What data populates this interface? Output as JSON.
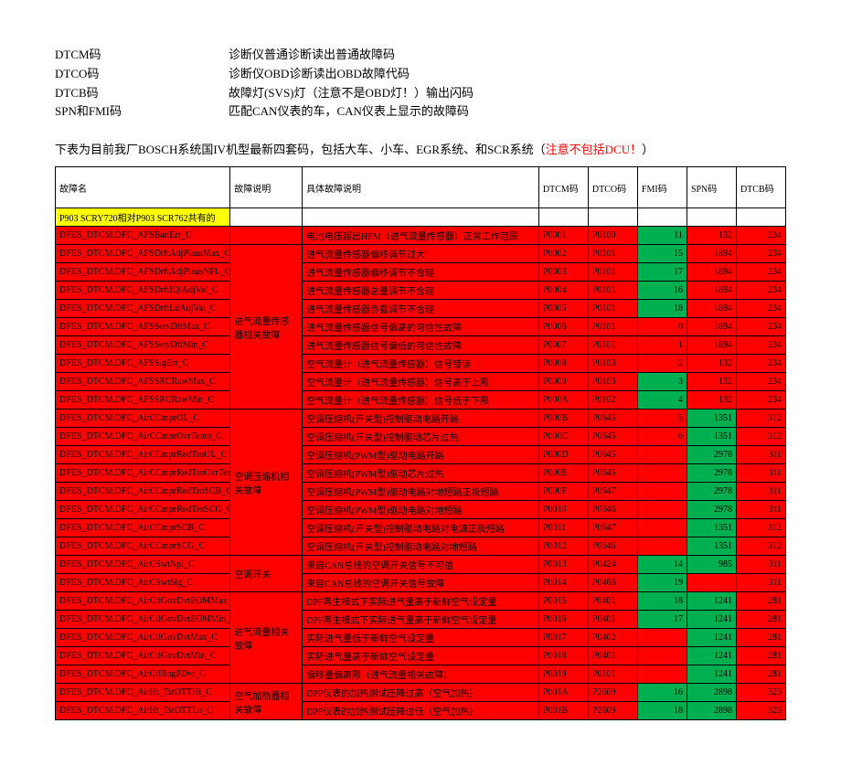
{
  "legend": [
    {
      "key": "DTCM码",
      "desc": "诊断仪普通诊断读出普通故障码"
    },
    {
      "key": "DTCO码",
      "desc": "诊断仪OBD诊断读出OBD故障代码"
    },
    {
      "key": "DTCB码",
      "desc": "故障灯(SVS)灯（注意不是OBD灯！）输出闪码"
    },
    {
      "key": "SPN和FMI码",
      "desc": "匹配CAN仪表的车，CAN仪表上显示的故障码"
    }
  ],
  "note_prefix": "下表为目前我厂BOSCH系统国IV机型最新四套码，包括大车、小车、EGR系统、和SCR系统（",
  "note_warn": "注意不包括DCU！",
  "note_suffix": "）",
  "headers": {
    "name": "故障名",
    "expl": "故障说明",
    "detail": "具体故障说明",
    "dtcm": "DTCM码",
    "dtco": "DTCO码",
    "fmi": "FMI码",
    "spn": "SPN码",
    "dtcb": "DTCB码"
  },
  "section_label": "P903 SCRY720相对P903 SCR762共有的",
  "groups": [
    {
      "expl": "",
      "rows": [
        {
          "name": "DFES_DTCM.DFC_AFSBattErr_C",
          "detail": "电池电压超出HFM（进气流量传感器）正常工作范围",
          "dtcm": "P0001",
          "dtco": "P0100",
          "fmi": "11",
          "spn": "132",
          "dtcb": "234",
          "fmi_bg": "green"
        }
      ]
    },
    {
      "expl": "进气流量传感器相关故障",
      "rows": [
        {
          "name": "DFES_DTCM.DFC_AFSDrftAdjPlausMax_C",
          "detail": "进气流量传感器偏移调节过大",
          "dtcm": "P0002",
          "dtco": "P0101",
          "fmi": "15",
          "fmi_bg": "green",
          "spn": "1894",
          "dtcb": "234"
        },
        {
          "name": "DFES_DTCM.DFC_AFSDrftAdjPlausNPL_C",
          "detail": "进气流量传感器偏移调节不合理",
          "dtcm": "P0003",
          "dtco": "P0101",
          "fmi": "17",
          "fmi_bg": "green",
          "spn": "1894",
          "dtcb": "234"
        },
        {
          "name": "DFES_DTCM.DFC_AFSDrftIQlAdjVal_C",
          "detail": "进气流量传感器总量调节不合理",
          "dtcm": "P0004",
          "dtco": "P0101",
          "fmi": "16",
          "fmi_bg": "green",
          "spn": "1894",
          "dtcb": "234"
        },
        {
          "name": "DFES_DTCM.DFC_AFSDrftLdAdjVal_C",
          "detail": "进气流量传感器负载调节不合理",
          "dtcm": "P0005",
          "dtco": "P0101",
          "fmi": "18",
          "fmi_bg": "green",
          "spn": "1894",
          "dtcb": "234"
        },
        {
          "name": "DFES_DTCM.DFC_AFSSetyDftMax_C",
          "detail": "进气流量传感器信号偏高的可信性故障",
          "dtcm": "P0006",
          "dtco": "P0101",
          "fmi": "0",
          "spn": "1894",
          "dtcb": "234"
        },
        {
          "name": "DFES_DTCM.DFC_AFSSetyDftMin_C",
          "detail": "进气流量传感器信号偏低的可信性故障",
          "dtcm": "P0007",
          "dtco": "P0101",
          "fmi": "1",
          "spn": "1894",
          "dtcb": "234"
        },
        {
          "name": "DFES_DTCM.DFC_AFSSigErr_C",
          "detail": "空气流量计（进气流量传感器）信号错误",
          "dtcm": "P0008",
          "dtco": "P0103",
          "fmi": "2",
          "spn": "132",
          "dtcb": "234"
        },
        {
          "name": "DFES_DTCM.DFC_AFSSRCRawMax_C",
          "detail": "空气流量计（进气流量传感器）信号高于上限",
          "dtcm": "P0009",
          "dtco": "P0103",
          "fmi": "3",
          "fmi_bg": "green",
          "spn": "132",
          "dtcb": "234"
        },
        {
          "name": "DFES_DTCM.DFC_AFSSRCRawMin_C",
          "detail": "空气流量计（进气流量传感器）信号低于下限",
          "dtcm": "P000A",
          "dtco": "P0102",
          "fmi": "4",
          "fmi_bg": "green",
          "spn": "132",
          "dtcb": "234"
        }
      ]
    },
    {
      "expl": "空调压缩机相关故障",
      "rows": [
        {
          "name": "DFES_DTCM.DFC_AirCCmprOL_C",
          "detail": "空调压缩机(开关型)控制驱动电路开路",
          "dtcm": "P000B",
          "dtco": "P0645",
          "fmi": "5",
          "spn": "1351",
          "spn_bg": "green",
          "dtcb": "312"
        },
        {
          "name": "DFES_DTCM.DFC_AirCCmprOvrTemp_C",
          "detail": "空调压缩机(开关型)控制驱动芯片过热",
          "dtcm": "P000C",
          "dtco": "P0645",
          "fmi": "6",
          "spn": "1351",
          "spn_bg": "green",
          "dtcb": "312"
        },
        {
          "name": "DFES_DTCM.DFC_AirCCmprRedTroOL_C",
          "detail": "空调压缩机(PWM型)驱动电路开路",
          "dtcm": "P000D",
          "dtco": "P0645",
          "fmi": "",
          "spn": "2978",
          "spn_bg": "green",
          "dtcb": "311"
        },
        {
          "name": "DFES_DTCM.DFC_AirCCmprRedTroOvrTemp_C",
          "detail": "空调压缩机(PWM型)驱动芯片过热",
          "dtcm": "P000E",
          "dtco": "P0645",
          "fmi": "",
          "spn": "2978",
          "spn_bg": "green",
          "dtcb": "311"
        },
        {
          "name": "DFES_DTCM.DFC_AirCCmprRedTroSCB_C",
          "detail": "空调压缩机(PWM型)驱动电路对地短路正极短路",
          "dtcm": "P000F",
          "dtco": "P0647",
          "fmi": "",
          "spn": "2978",
          "spn_bg": "green",
          "dtcb": "311"
        },
        {
          "name": "DFES_DTCM.DFC_AirCCmprRedTroSCG_C",
          "detail": "空调压缩机(PWM型)驱动电路对地短路",
          "dtcm": "P0010",
          "dtco": "P0646",
          "fmi": "",
          "spn": "2978",
          "spn_bg": "green",
          "dtcb": "311"
        },
        {
          "name": "DFES_DTCM.DFC_AirCCmprSCB_C",
          "detail": "空调压缩机(开关型)控制驱动电路对电源正极短路",
          "dtcm": "P0011",
          "dtco": "P0647",
          "fmi": "",
          "spn": "1351",
          "spn_bg": "green",
          "dtcb": "312"
        },
        {
          "name": "DFES_DTCM.DFC_AirCCmprSCG_C",
          "detail": "空调压缩机(开关型)控制驱动电路对地短路",
          "dtcm": "P0012",
          "dtco": "P0646",
          "fmi": "",
          "spn": "1351",
          "spn_bg": "green",
          "dtcb": "312"
        }
      ]
    },
    {
      "expl": "空调开关",
      "rows": [
        {
          "name": "DFES_DTCM.DFC_AirCSwtNpl_C",
          "detail": "来自CAN总线的空调开关信号不可信",
          "dtcm": "P0013",
          "dtco": "P0424",
          "fmi": "14",
          "fmi_bg": "green",
          "spn": "985",
          "spn_bg": "green",
          "dtcb": "311"
        },
        {
          "name": "DFES_DTCM.DFC_AirCSwtSig_C",
          "detail": "来自CAN总线的空调开关信号故障",
          "dtcm": "P0014",
          "dtco": "P0466",
          "fmi": "19",
          "fmi_bg": "green",
          "spn": "",
          "dtcb": "311"
        }
      ]
    },
    {
      "expl": "进气流量相关故障",
      "rows": [
        {
          "name": "DFES_DTCM.DFC_AirCtlGovDvtEOMMax_C",
          "detail": "DPF再生模式下实际进气量高于新鲜空气设定量",
          "dtcm": "P0015",
          "dtco": "P0401",
          "fmi": "18",
          "fmi_bg": "green",
          "spn": "1241",
          "spn_bg": "green",
          "dtcb": "281"
        },
        {
          "name": "DFES_DTCM.DFC_AirCtlGovDvtEOMMin_C",
          "detail": "DPF再生模式下实际进气量高于新鲜空气设定量",
          "dtcm": "P0016",
          "dtco": "P0401",
          "fmi": "17",
          "fmi_bg": "green",
          "spn": "1241",
          "spn_bg": "green",
          "dtcb": "281"
        },
        {
          "name": "DFES_DTCM.DFC_AirCtlGovDvtMax_C",
          "detail": "实际进气量低于新鲜空气设定量",
          "dtcm": "P0017",
          "dtco": "P0402",
          "fmi": "",
          "spn": "1241",
          "spn_bg": "green",
          "dtcb": "281"
        },
        {
          "name": "DFES_DTCM.DFC_AirCtlGovDvtMin_C",
          "detail": "实际进气量高于新鲜空气设定量",
          "dtcm": "P0018",
          "dtco": "P0401",
          "fmi": "",
          "spn": "1241",
          "spn_bg": "green",
          "dtcb": "281"
        },
        {
          "name": "DFES_DTCM.DFC_AirCtlRngPDvt_C",
          "detail": "偏移量偏离限（进气流量相关故障）",
          "dtcm": "P0019",
          "dtco": "P0101",
          "fmi": "",
          "spn": "1241",
          "spn_bg": "green",
          "dtcb": "281"
        }
      ]
    },
    {
      "expl": "空气加热器相关故障",
      "rows": [
        {
          "name": "DFES_DTCM.DFC_AirHt_TstOTTHi_C",
          "detail": "DPF仪表的加热测试压降过高（空气加热）",
          "dtcm": "P001A",
          "dtco": "P2609",
          "fmi": "16",
          "fmi_bg": "green",
          "spn": "2898",
          "spn_bg": "green",
          "dtcb": "323"
        },
        {
          "name": "DFES_DTCM.DFC_AirHt_TstOTTLo_C",
          "detail": "DPF仪表的加热测试压降过低（空气加热）",
          "dtcm": "P001B",
          "dtco": "P2609",
          "fmi": "18",
          "fmi_bg": "green",
          "spn": "2898",
          "spn_bg": "green",
          "dtcb": "323"
        }
      ]
    }
  ]
}
